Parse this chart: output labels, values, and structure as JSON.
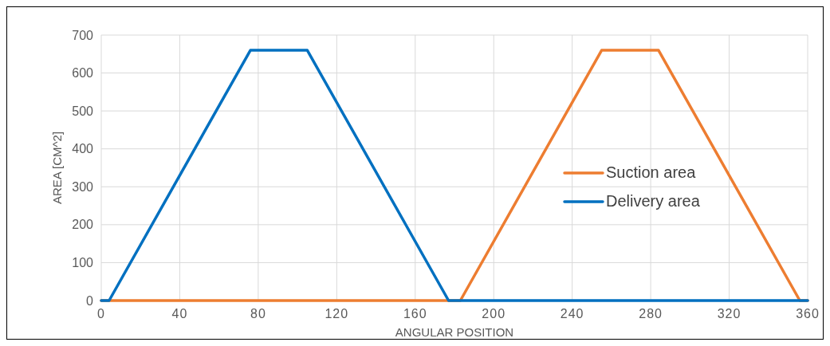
{
  "chart_data": {
    "type": "line",
    "xlabel": "ANGULAR POSITION",
    "ylabel": "AREA [CM^2]",
    "series": [
      {
        "name": "Suction area",
        "color": "#ed7d31",
        "x": [
          0,
          183,
          255,
          284,
          356,
          360
        ],
        "values": [
          0,
          0,
          660,
          660,
          0,
          0
        ]
      },
      {
        "name": "Delivery area",
        "color": "#0070c0",
        "x": [
          0,
          4,
          76,
          105,
          177,
          360
        ],
        "values": [
          0,
          0,
          660,
          660,
          0,
          0
        ]
      }
    ],
    "xlim": [
      0,
      360
    ],
    "xticks": [
      0,
      40,
      80,
      120,
      160,
      200,
      240,
      280,
      320,
      360
    ],
    "ylim": [
      0,
      700
    ],
    "yticks": [
      0,
      100,
      200,
      300,
      400,
      500,
      600,
      700
    ],
    "grid": true,
    "legend": "right",
    "marker": "none",
    "line_style": "solid"
  }
}
